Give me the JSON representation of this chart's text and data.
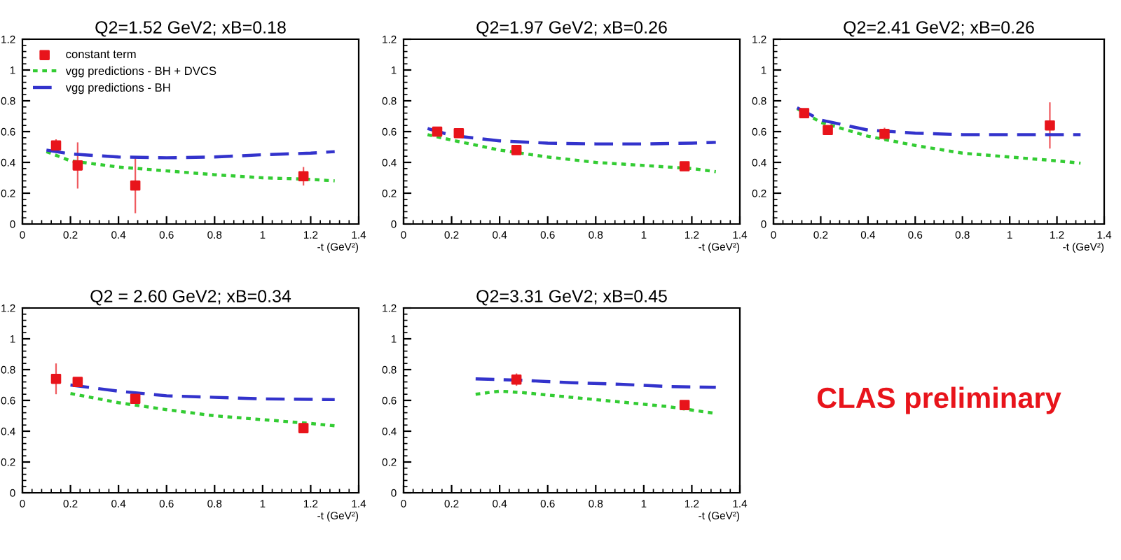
{
  "chart_data": [
    {
      "type": "scatter",
      "title": "Q2=1.52 GeV2; xB=0.18",
      "xlabel": "-t (GeV²)",
      "xlim": [
        0,
        1.4
      ],
      "xticks": [
        0,
        0.2,
        0.4,
        0.6,
        0.8,
        1,
        1.2,
        1.4
      ],
      "ylim": [
        0,
        1.2
      ],
      "yticks": [
        0,
        0.2,
        0.4,
        0.6,
        0.8,
        1,
        1.2
      ],
      "grid": false,
      "legend": "top left",
      "series": [
        {
          "name": "constant term",
          "type": "scatter",
          "marker": "square",
          "color": "#e8141b",
          "x": [
            0.14,
            0.23,
            0.47,
            1.17
          ],
          "values": [
            0.51,
            0.38,
            0.25,
            0.31
          ],
          "errors": [
            0.04,
            0.15,
            0.18,
            0.06
          ]
        },
        {
          "name": "vgg predictions - BH + DVCS",
          "type": "line",
          "line_style": "dotted",
          "color": "#33cc33",
          "x": [
            0.1,
            0.2,
            0.4,
            0.6,
            0.8,
            1.0,
            1.2,
            1.3
          ],
          "values": [
            0.47,
            0.41,
            0.37,
            0.345,
            0.32,
            0.3,
            0.29,
            0.28
          ]
        },
        {
          "name": "vgg predictions - BH",
          "type": "line",
          "line_style": "dashed",
          "color": "#3333cc",
          "x": [
            0.1,
            0.2,
            0.4,
            0.6,
            0.8,
            1.0,
            1.2,
            1.3
          ],
          "values": [
            0.48,
            0.455,
            0.435,
            0.43,
            0.435,
            0.45,
            0.46,
            0.47
          ]
        }
      ]
    },
    {
      "type": "scatter",
      "title": "Q2=1.97 GeV2; xB=0.26",
      "xlabel": "-t (GeV²)",
      "xlim": [
        0,
        1.4
      ],
      "xticks": [
        0,
        0.2,
        0.4,
        0.6,
        0.8,
        1,
        1.2,
        1.4
      ],
      "ylim": [
        0,
        1.2
      ],
      "yticks": [
        0,
        0.2,
        0.4,
        0.6,
        0.8,
        1,
        1.2
      ],
      "grid": false,
      "series": [
        {
          "type": "scatter",
          "marker": "square",
          "color": "#e8141b",
          "x": [
            0.14,
            0.23,
            0.47,
            1.17
          ],
          "values": [
            0.6,
            0.59,
            0.48,
            0.375
          ],
          "errors": [
            0.02,
            0.02,
            0.02,
            0.02
          ]
        },
        {
          "type": "line",
          "line_style": "dotted",
          "color": "#33cc33",
          "x": [
            0.1,
            0.2,
            0.4,
            0.6,
            0.8,
            1.0,
            1.2,
            1.3
          ],
          "values": [
            0.58,
            0.545,
            0.48,
            0.435,
            0.4,
            0.38,
            0.36,
            0.34
          ]
        },
        {
          "type": "line",
          "line_style": "dashed",
          "color": "#3333cc",
          "x": [
            0.1,
            0.2,
            0.4,
            0.6,
            0.8,
            1.0,
            1.2,
            1.3
          ],
          "values": [
            0.62,
            0.575,
            0.54,
            0.525,
            0.52,
            0.52,
            0.525,
            0.53
          ]
        }
      ]
    },
    {
      "type": "scatter",
      "title": "Q2=2.41 GeV2; xB=0.26",
      "xlabel": "-t (GeV²)",
      "xlim": [
        0,
        1.4
      ],
      "xticks": [
        0,
        0.2,
        0.4,
        0.6,
        0.8,
        1,
        1.2,
        1.4
      ],
      "ylim": [
        0,
        1.2
      ],
      "yticks": [
        0,
        0.2,
        0.4,
        0.6,
        0.8,
        1,
        1.2
      ],
      "grid": false,
      "series": [
        {
          "type": "scatter",
          "marker": "square",
          "color": "#e8141b",
          "x": [
            0.13,
            0.23,
            0.47,
            1.17
          ],
          "values": [
            0.72,
            0.61,
            0.585,
            0.64
          ],
          "errors": [
            0.03,
            0.03,
            0.04,
            0.15
          ]
        },
        {
          "type": "line",
          "line_style": "dotted",
          "color": "#33cc33",
          "x": [
            0.1,
            0.2,
            0.4,
            0.6,
            0.8,
            1.0,
            1.2,
            1.3
          ],
          "values": [
            0.75,
            0.66,
            0.57,
            0.51,
            0.46,
            0.435,
            0.41,
            0.395
          ]
        },
        {
          "type": "line",
          "line_style": "dashed",
          "color": "#3333cc",
          "x": [
            0.1,
            0.2,
            0.4,
            0.6,
            0.8,
            1.0,
            1.3
          ],
          "values": [
            0.755,
            0.675,
            0.61,
            0.59,
            0.58,
            0.58,
            0.58
          ]
        }
      ]
    },
    {
      "type": "scatter",
      "title": "Q2 = 2.60 GeV2; xB=0.34",
      "xlabel": "-t (GeV²)",
      "xlim": [
        0,
        1.4
      ],
      "xticks": [
        0,
        0.2,
        0.4,
        0.6,
        0.8,
        1,
        1.2,
        1.4
      ],
      "ylim": [
        0,
        1.2
      ],
      "yticks": [
        0,
        0.2,
        0.4,
        0.6,
        0.8,
        1,
        1.2
      ],
      "grid": false,
      "series": [
        {
          "type": "scatter",
          "marker": "square",
          "color": "#e8141b",
          "x": [
            0.14,
            0.23,
            0.47,
            1.17
          ],
          "values": [
            0.74,
            0.72,
            0.61,
            0.42
          ],
          "errors": [
            0.1,
            0.02,
            0.02,
            0.02
          ]
        },
        {
          "type": "line",
          "line_style": "dotted",
          "color": "#33cc33",
          "x": [
            0.2,
            0.4,
            0.6,
            0.8,
            1.0,
            1.2,
            1.3
          ],
          "values": [
            0.645,
            0.585,
            0.54,
            0.5,
            0.475,
            0.45,
            0.435
          ]
        },
        {
          "type": "line",
          "line_style": "dashed",
          "color": "#3333cc",
          "x": [
            0.2,
            0.4,
            0.6,
            0.8,
            1.0,
            1.3
          ],
          "values": [
            0.7,
            0.66,
            0.63,
            0.62,
            0.61,
            0.605
          ]
        }
      ]
    },
    {
      "type": "scatter",
      "title": "Q2=3.31 GeV2; xB=0.45",
      "xlabel": "-t (GeV²)",
      "xlim": [
        0,
        1.4
      ],
      "xticks": [
        0,
        0.2,
        0.4,
        0.6,
        0.8,
        1,
        1.2,
        1.4
      ],
      "ylim": [
        0,
        1.2
      ],
      "yticks": [
        0,
        0.2,
        0.4,
        0.6,
        0.8,
        1,
        1.2
      ],
      "grid": false,
      "series": [
        {
          "type": "scatter",
          "marker": "square",
          "color": "#e8141b",
          "x": [
            0.47,
            1.17
          ],
          "values": [
            0.735,
            0.57
          ],
          "errors": [
            0.04,
            0.03
          ]
        },
        {
          "type": "line",
          "line_style": "dotted",
          "color": "#33cc33",
          "x": [
            0.3,
            0.4,
            0.5,
            0.7,
            0.9,
            1.1,
            1.3
          ],
          "values": [
            0.64,
            0.66,
            0.65,
            0.62,
            0.59,
            0.56,
            0.515
          ]
        },
        {
          "type": "line",
          "line_style": "dashed",
          "color": "#3333cc",
          "x": [
            0.3,
            0.5,
            0.7,
            0.9,
            1.1,
            1.3
          ],
          "values": [
            0.74,
            0.73,
            0.715,
            0.705,
            0.69,
            0.685
          ]
        }
      ]
    },
    {
      "type": "other",
      "annotations": [
        "CLAS preliminary"
      ]
    }
  ]
}
